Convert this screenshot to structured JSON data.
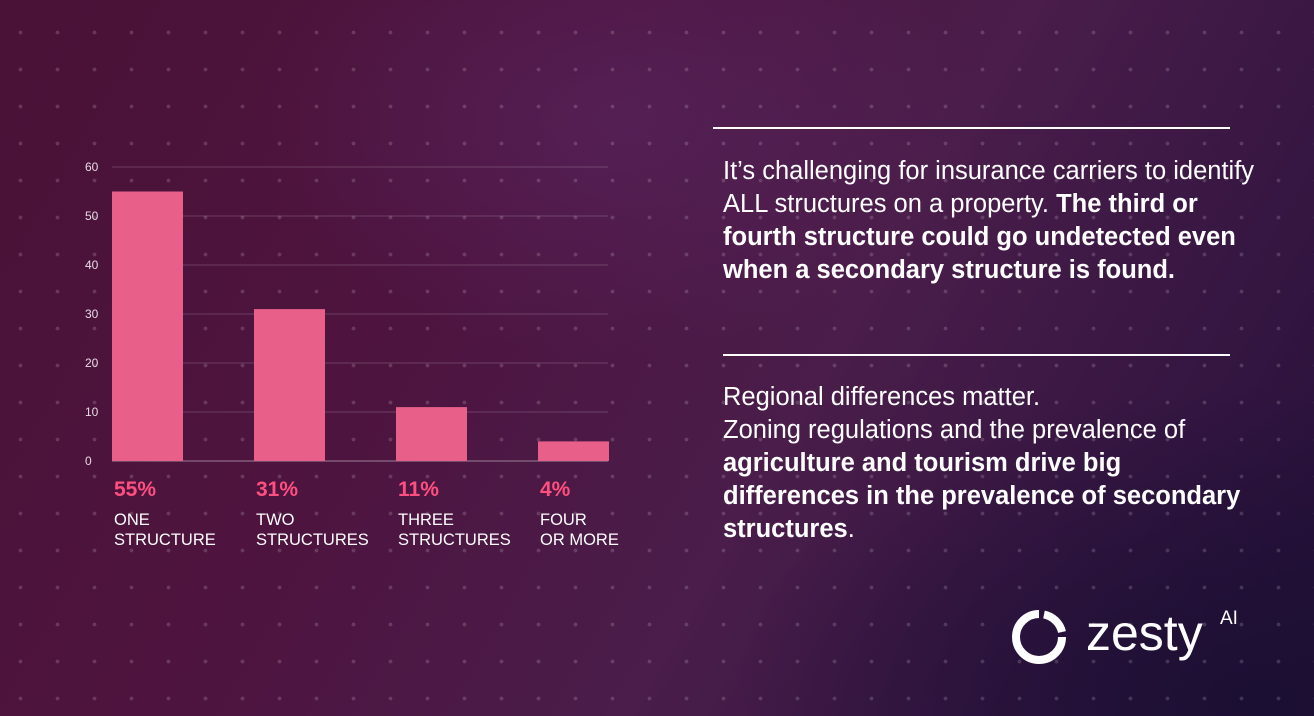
{
  "chart_data": {
    "type": "bar",
    "categories": [
      "ONE STRUCTURE",
      "TWO STRUCTURES",
      "THREE STRUCTURES",
      "FOUR OR MORE"
    ],
    "category_lines": [
      [
        "ONE",
        "STRUCTURE"
      ],
      [
        "TWO",
        "STRUCTURES"
      ],
      [
        "THREE",
        "STRUCTURES"
      ],
      [
        "FOUR",
        "OR MORE"
      ]
    ],
    "values": [
      55,
      31,
      11,
      4
    ],
    "data_labels": [
      "55%",
      "31%",
      "11%",
      "4%"
    ],
    "yticks": [
      "0",
      "10",
      "20",
      "30",
      "40",
      "50",
      "60"
    ],
    "ylim": [
      0,
      60
    ],
    "grid": true,
    "bar_color": "#e8608a",
    "label_color": "#ff4f7f"
  },
  "text": {
    "p1_normal": "It’s challenging for insurance carriers to identify ALL structures on a property.",
    "p1_bold": "The third or fourth structure could go undetected even when a secondary structure is found.",
    "p2_normal_1": "Regional differences matter.",
    "p2_normal_2": "Zoning regulations and the prevalence of",
    "p2_bold": "agriculture and tourism drive big differences in the prevalence of secondary structures",
    "p2_end": "."
  },
  "logo": {
    "word": "zesty",
    "suffix": "AI",
    "icon": "zesty-ring-icon"
  },
  "colors": {
    "accent": "#ff4f7f",
    "background": "#4a1236"
  }
}
